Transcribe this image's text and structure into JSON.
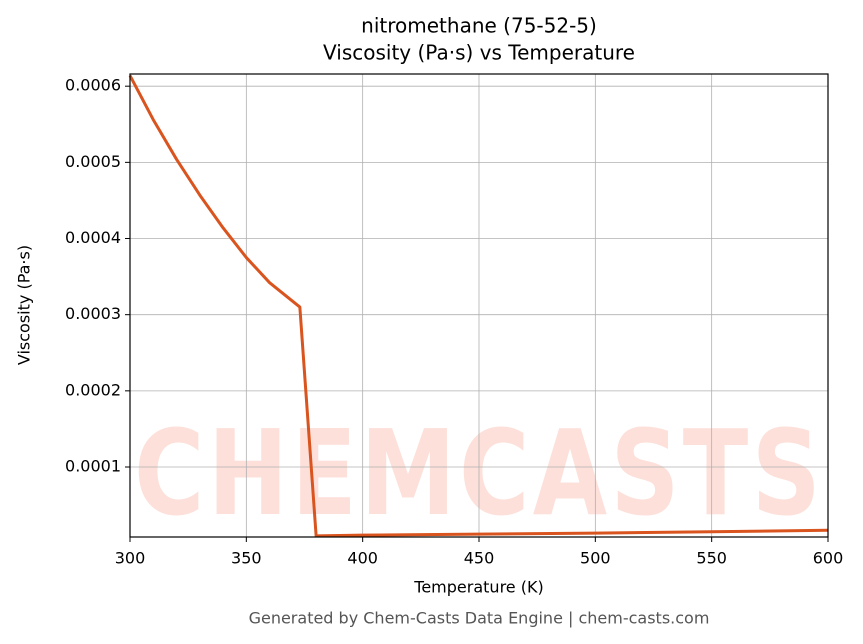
{
  "chart_data": {
    "type": "line",
    "title": "nitromethane (75-52-5)",
    "subtitle": "Viscosity (Pa·s) vs Temperature",
    "x_label": "Temperature (K)",
    "y_label": "Viscosity (Pa·s)",
    "footer": "Generated by Chem-Casts Data Engine | chem-casts.com",
    "watermark": "CHEMCASTS",
    "xlim": [
      300,
      600
    ],
    "xticks": [
      300,
      350,
      400,
      450,
      500,
      550,
      600
    ],
    "ylim": [
      8.1e-06,
      0.000616
    ],
    "yticks": [
      0.0001,
      0.0002,
      0.0003,
      0.0004,
      0.0005,
      0.0006
    ],
    "grid": true,
    "x": [
      300,
      310,
      320,
      330,
      340,
      350,
      360,
      373,
      380,
      400,
      450,
      500,
      550,
      600
    ],
    "series": [
      {
        "name": "Viscosity",
        "color": "#d9541e",
        "values": [
          0.000614,
          0.000556,
          0.000504,
          0.000457,
          0.000414,
          0.000375,
          0.000342,
          0.00031,
          9.5e-06,
          1.05e-05,
          1.18e-05,
          1.32e-05,
          1.5e-05,
          1.7e-05
        ]
      }
    ]
  }
}
